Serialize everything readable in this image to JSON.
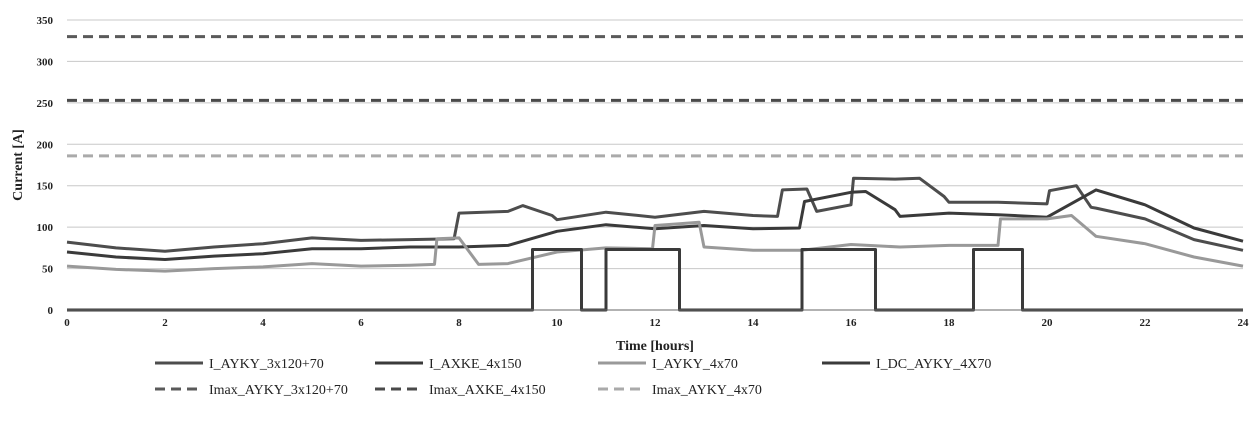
{
  "chart_data": {
    "type": "line",
    "title": "",
    "xlabel": "Time [hours]",
    "ylabel": "Current [A]",
    "xlim": [
      0,
      24
    ],
    "ylim": [
      0,
      350
    ],
    "x_ticks": [
      "0",
      "2",
      "4",
      "6",
      "8",
      "10",
      "12",
      "14",
      "16",
      "18",
      "20",
      "22",
      "24"
    ],
    "y_ticks": [
      "0",
      "50",
      "100",
      "150",
      "200",
      "250",
      "300",
      "350"
    ],
    "grid": "horizontal",
    "legend_position": "bottom",
    "series": [
      {
        "name": "I_AYKY_3x120+70",
        "color": "#4d4d4d",
        "dash": "solid",
        "x": [
          0,
          1,
          2,
          3,
          4,
          5,
          6,
          7,
          7.9,
          8.0,
          9.0,
          9.3,
          9.9,
          10.0,
          11.0,
          12.0,
          13.0,
          14.0,
          14.5,
          14.6,
          15.1,
          15.3,
          16.0,
          16.05,
          16.9,
          17.4,
          17.9,
          18.0,
          19.0,
          20.0,
          20.05,
          20.6,
          20.9,
          21.0,
          22.0,
          23.0,
          24.0
        ],
        "y": [
          82,
          75,
          71,
          76,
          80,
          87,
          84,
          85,
          86,
          117,
          119,
          126,
          114,
          109,
          118,
          112,
          119,
          114,
          113,
          145,
          146,
          119,
          127,
          159,
          158,
          159,
          137,
          130,
          130,
          128,
          144,
          150,
          124,
          123,
          110,
          85,
          72
        ]
      },
      {
        "name": "I_AXKE_4x150",
        "color": "#3a3a3a",
        "dash": "solid",
        "x": [
          0,
          1,
          2,
          3,
          4,
          5,
          6,
          7,
          8,
          9,
          10,
          11,
          12,
          13,
          14,
          14.95,
          15.05,
          16.0,
          16.3,
          16.9,
          17.0,
          18.0,
          19.0,
          20.0,
          21.0,
          22.0,
          22.5,
          23.0,
          24.0
        ],
        "y": [
          70,
          64,
          61,
          65,
          68,
          74,
          74,
          76,
          76,
          78,
          95,
          103,
          98,
          102,
          98,
          99,
          131,
          142,
          143,
          121,
          113,
          117,
          115,
          112,
          145,
          127,
          113,
          99,
          83
        ]
      },
      {
        "name": "I_AYKY_4x70",
        "color": "#999999",
        "dash": "solid",
        "x": [
          0,
          1,
          2,
          3,
          4,
          5,
          6,
          7,
          7.5,
          7.55,
          8.0,
          8.4,
          9.0,
          10.0,
          11.0,
          11.95,
          12.0,
          12.5,
          12.9,
          13.0,
          14.0,
          15.0,
          16.0,
          17.0,
          18.0,
          19.0,
          19.05,
          20.0,
          20.5,
          20.9,
          21.0,
          22.0,
          23.0,
          24.0
        ],
        "y": [
          53,
          49,
          47,
          50,
          52,
          56,
          53,
          54,
          55,
          86,
          87,
          55,
          56,
          70,
          75,
          74,
          102,
          104,
          106,
          76,
          72,
          72,
          79,
          76,
          78,
          78,
          110,
          110,
          114,
          94,
          89,
          80,
          64,
          53
        ]
      },
      {
        "name": "I_DC_AYKY_4X70",
        "color": "#3a3a3a",
        "dash": "solid",
        "x": [
          0,
          9.5,
          9.5,
          10.5,
          10.5,
          11.0,
          11.0,
          12.5,
          12.5,
          15.0,
          15.0,
          16.5,
          16.5,
          18.5,
          18.5,
          19.5,
          19.5,
          24.0
        ],
        "y": [
          0,
          0,
          73,
          73,
          0,
          0,
          73,
          73,
          0,
          0,
          73,
          73,
          0,
          0,
          73,
          73,
          0,
          0
        ]
      },
      {
        "name": "Imax_AYKY_3x120+70",
        "color": "#5a5a5a",
        "dash": "dashed",
        "x": [
          0,
          24
        ],
        "y": [
          330,
          330
        ]
      },
      {
        "name": "Imax_AXKE_4x150",
        "color": "#4a4a4a",
        "dash": "dashed",
        "x": [
          0,
          24
        ],
        "y": [
          253,
          253
        ]
      },
      {
        "name": "Imax_AYKY_4x70",
        "color": "#aaaaaa",
        "dash": "dashed",
        "x": [
          0,
          24
        ],
        "y": [
          186,
          186
        ]
      }
    ]
  }
}
